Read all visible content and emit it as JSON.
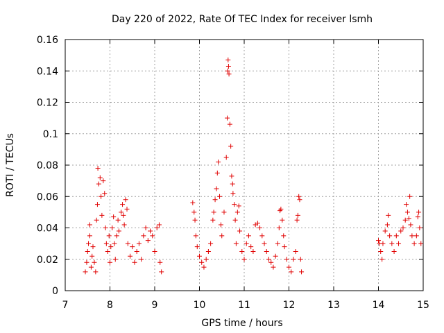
{
  "chart_data": {
    "type": "scatter",
    "title": "Day 220 of 2022, Rate Of TEC Index for receiver lsmh",
    "xlabel": "GPS time / hours",
    "ylabel": "ROTI / TECUs",
    "xlim": [
      7,
      15
    ],
    "ylim": [
      0,
      0.16
    ],
    "xticks": [
      7,
      8,
      9,
      10,
      11,
      12,
      13,
      14,
      15
    ],
    "xtick_labels": [
      "7",
      "8",
      "9",
      "10",
      "11",
      "12",
      "13",
      "14",
      "15"
    ],
    "yticks": [
      0,
      0.02,
      0.04,
      0.06,
      0.08,
      0.1,
      0.12,
      0.14,
      0.16
    ],
    "ytick_labels": [
      "0",
      "0.02",
      "0.04",
      "0.06",
      "0.08",
      "0.1",
      "0.12",
      "0.14",
      "0.16"
    ],
    "grid": true,
    "marker": "+",
    "color": "#e00000",
    "series": [
      {
        "points": [
          [
            7.45,
            0.012
          ],
          [
            7.48,
            0.018
          ],
          [
            7.5,
            0.025
          ],
          [
            7.52,
            0.03
          ],
          [
            7.55,
            0.035
          ],
          [
            7.55,
            0.042
          ],
          [
            7.58,
            0.015
          ],
          [
            7.6,
            0.022
          ],
          [
            7.62,
            0.028
          ],
          [
            7.65,
            0.018
          ],
          [
            7.68,
            0.012
          ],
          [
            7.7,
            0.045
          ],
          [
            7.72,
            0.055
          ],
          [
            7.73,
            0.078
          ],
          [
            7.75,
            0.068
          ],
          [
            7.78,
            0.072
          ],
          [
            7.8,
            0.06
          ],
          [
            7.82,
            0.048
          ],
          [
            7.85,
            0.07
          ],
          [
            7.88,
            0.062
          ],
          [
            7.9,
            0.04
          ],
          [
            7.92,
            0.03
          ],
          [
            7.95,
            0.025
          ],
          [
            7.98,
            0.035
          ],
          [
            8.0,
            0.018
          ],
          [
            8.02,
            0.028
          ],
          [
            8.05,
            0.04
          ],
          [
            8.08,
            0.047
          ],
          [
            8.1,
            0.03
          ],
          [
            8.12,
            0.02
          ],
          [
            8.15,
            0.035
          ],
          [
            8.18,
            0.045
          ],
          [
            8.2,
            0.038
          ],
          [
            8.25,
            0.05
          ],
          [
            8.28,
            0.055
          ],
          [
            8.3,
            0.048
          ],
          [
            8.32,
            0.042
          ],
          [
            8.35,
            0.058
          ],
          [
            8.38,
            0.052
          ],
          [
            8.4,
            0.03
          ],
          [
            8.45,
            0.022
          ],
          [
            8.5,
            0.028
          ],
          [
            8.55,
            0.018
          ],
          [
            8.6,
            0.025
          ],
          [
            8.65,
            0.03
          ],
          [
            8.7,
            0.02
          ],
          [
            8.75,
            0.035
          ],
          [
            8.8,
            0.04
          ],
          [
            8.85,
            0.032
          ],
          [
            8.9,
            0.038
          ],
          [
            8.95,
            0.035
          ],
          [
            9.0,
            0.025
          ],
          [
            9.05,
            0.04
          ],
          [
            9.1,
            0.042
          ],
          [
            9.12,
            0.018
          ],
          [
            9.15,
            0.012
          ],
          [
            9.85,
            0.056
          ],
          [
            9.88,
            0.05
          ],
          [
            9.9,
            0.045
          ],
          [
            9.92,
            0.035
          ],
          [
            9.95,
            0.028
          ],
          [
            10.0,
            0.022
          ],
          [
            10.05,
            0.018
          ],
          [
            10.1,
            0.015
          ],
          [
            10.15,
            0.02
          ],
          [
            10.2,
            0.025
          ],
          [
            10.25,
            0.03
          ],
          [
            10.3,
            0.045
          ],
          [
            10.32,
            0.05
          ],
          [
            10.35,
            0.058
          ],
          [
            10.38,
            0.065
          ],
          [
            10.4,
            0.075
          ],
          [
            10.42,
            0.082
          ],
          [
            10.45,
            0.06
          ],
          [
            10.48,
            0.042
          ],
          [
            10.5,
            0.035
          ],
          [
            10.55,
            0.05
          ],
          [
            10.6,
            0.085
          ],
          [
            10.62,
            0.11
          ],
          [
            10.63,
            0.14
          ],
          [
            10.64,
            0.147
          ],
          [
            10.65,
            0.143
          ],
          [
            10.66,
            0.138
          ],
          [
            10.68,
            0.106
          ],
          [
            10.7,
            0.092
          ],
          [
            10.72,
            0.073
          ],
          [
            10.74,
            0.068
          ],
          [
            10.75,
            0.062
          ],
          [
            10.78,
            0.055
          ],
          [
            10.8,
            0.045
          ],
          [
            10.82,
            0.03
          ],
          [
            10.85,
            0.05
          ],
          [
            10.88,
            0.054
          ],
          [
            10.9,
            0.038
          ],
          [
            10.95,
            0.025
          ],
          [
            11.0,
            0.02
          ],
          [
            11.05,
            0.03
          ],
          [
            11.1,
            0.035
          ],
          [
            11.15,
            0.028
          ],
          [
            11.2,
            0.025
          ],
          [
            11.25,
            0.042
          ],
          [
            11.3,
            0.043
          ],
          [
            11.35,
            0.04
          ],
          [
            11.4,
            0.035
          ],
          [
            11.45,
            0.03
          ],
          [
            11.5,
            0.025
          ],
          [
            11.55,
            0.02
          ],
          [
            11.6,
            0.018
          ],
          [
            11.65,
            0.015
          ],
          [
            11.7,
            0.022
          ],
          [
            11.75,
            0.03
          ],
          [
            11.78,
            0.04
          ],
          [
            11.8,
            0.051
          ],
          [
            11.82,
            0.052
          ],
          [
            11.85,
            0.045
          ],
          [
            11.88,
            0.035
          ],
          [
            11.9,
            0.028
          ],
          [
            11.95,
            0.02
          ],
          [
            12.0,
            0.015
          ],
          [
            12.05,
            0.012
          ],
          [
            12.1,
            0.02
          ],
          [
            12.15,
            0.025
          ],
          [
            12.18,
            0.045
          ],
          [
            12.2,
            0.048
          ],
          [
            12.22,
            0.06
          ],
          [
            12.24,
            0.058
          ],
          [
            12.26,
            0.02
          ],
          [
            12.28,
            0.012
          ],
          [
            14.0,
            0.032
          ],
          [
            14.02,
            0.03
          ],
          [
            14.05,
            0.025
          ],
          [
            14.08,
            0.02
          ],
          [
            14.1,
            0.03
          ],
          [
            14.15,
            0.038
          ],
          [
            14.2,
            0.042
          ],
          [
            14.22,
            0.048
          ],
          [
            14.25,
            0.035
          ],
          [
            14.3,
            0.03
          ],
          [
            14.35,
            0.025
          ],
          [
            14.4,
            0.035
          ],
          [
            14.45,
            0.03
          ],
          [
            14.5,
            0.038
          ],
          [
            14.55,
            0.04
          ],
          [
            14.6,
            0.045
          ],
          [
            14.62,
            0.055
          ],
          [
            14.65,
            0.05
          ],
          [
            14.68,
            0.046
          ],
          [
            14.7,
            0.06
          ],
          [
            14.72,
            0.042
          ],
          [
            14.75,
            0.035
          ],
          [
            14.8,
            0.03
          ],
          [
            14.85,
            0.035
          ],
          [
            14.88,
            0.047
          ],
          [
            14.9,
            0.05
          ],
          [
            14.92,
            0.04
          ],
          [
            14.95,
            0.03
          ]
        ]
      }
    ]
  }
}
